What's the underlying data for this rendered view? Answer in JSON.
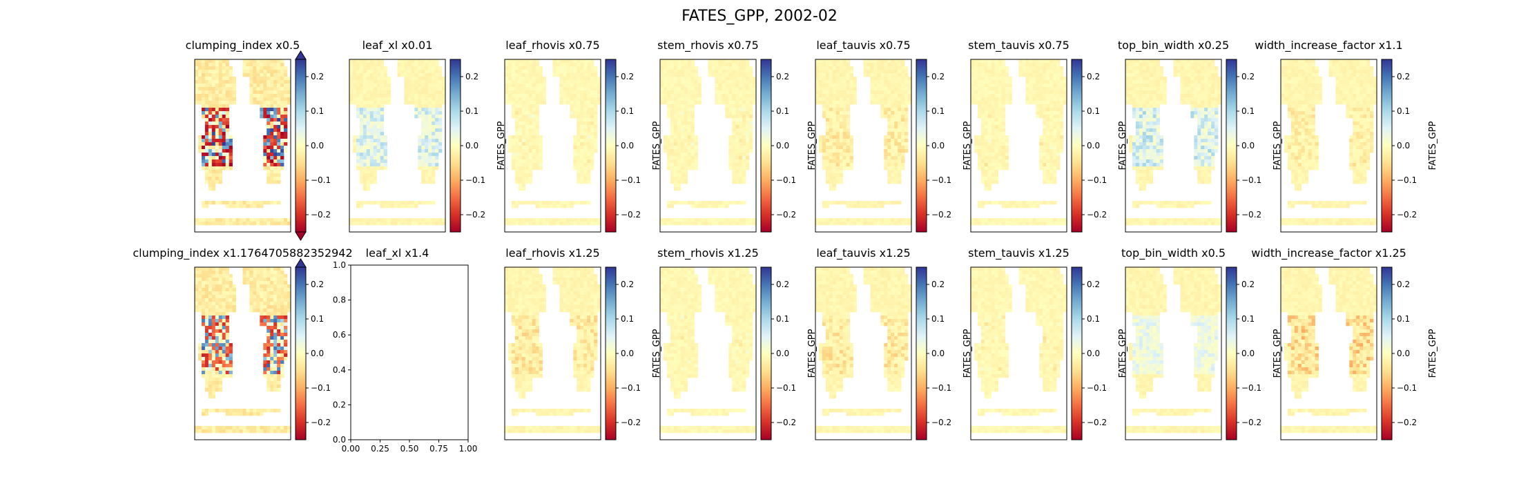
{
  "figure": {
    "title": "FATES_GPP, 2002-02"
  },
  "colorbar": {
    "label": "FATES_GPP",
    "ticks": [
      0.2,
      0.1,
      0.0,
      -0.1,
      -0.2
    ],
    "tick_labels": [
      "0.2",
      "0.1",
      "0.0",
      "−0.1",
      "−0.2"
    ],
    "range": [
      -0.25,
      0.25
    ],
    "colormap_stops": [
      "#a50026",
      "#d73027",
      "#f46d43",
      "#fdae61",
      "#fee090",
      "#ffffbf",
      "#e0f3f8",
      "#abd9e9",
      "#74add1",
      "#4575b4",
      "#313695"
    ]
  },
  "chart_data": [
    {
      "type": "heatmap",
      "title": "clumping_index x0.5",
      "colorbar_extend": "both",
      "pattern": "strong",
      "intensity": 1.0,
      "colorbar_label_shown": false
    },
    {
      "type": "heatmap",
      "title": "leaf_xl x0.01",
      "pattern": "blue",
      "intensity": 0.55
    },
    {
      "type": "heatmap",
      "title": "leaf_rhovis x0.75",
      "pattern": "faint",
      "intensity": 0.12
    },
    {
      "type": "heatmap",
      "title": "stem_rhovis x0.75",
      "pattern": "faint",
      "intensity": 0.08
    },
    {
      "type": "heatmap",
      "title": "leaf_tauvis x0.75",
      "pattern": "orange",
      "intensity": 0.18
    },
    {
      "type": "heatmap",
      "title": "stem_tauvis x0.75",
      "pattern": "faint",
      "intensity": 0.06
    },
    {
      "type": "heatmap",
      "title": "top_bin_width x0.25",
      "pattern": "blue",
      "intensity": 0.6
    },
    {
      "type": "heatmap",
      "title": "width_increase_factor x1.1",
      "pattern": "orange",
      "intensity": 0.16
    },
    {
      "type": "heatmap",
      "title": "clumping_index x1.1764705882352942",
      "colorbar_extend": "max",
      "pattern": "mixed",
      "intensity": 0.85,
      "colorbar_label_shown": false
    },
    {
      "type": "empty",
      "title": "leaf_xl x1.4",
      "xlim": [
        0,
        1
      ],
      "ylim": [
        0,
        1
      ],
      "x_ticks": [
        "0.00",
        "0.25",
        "0.50",
        "0.75",
        "1.00"
      ],
      "y_ticks": [
        "0.0",
        "0.2",
        "0.4",
        "0.6",
        "0.8",
        "1.0"
      ]
    },
    {
      "type": "heatmap",
      "title": "leaf_rhovis x1.25",
      "pattern": "orange",
      "intensity": 0.2
    },
    {
      "type": "heatmap",
      "title": "stem_rhovis x1.25",
      "pattern": "faint",
      "intensity": 0.1
    },
    {
      "type": "heatmap",
      "title": "leaf_tauvis x1.25",
      "pattern": "orange",
      "intensity": 0.2
    },
    {
      "type": "heatmap",
      "title": "stem_tauvis x1.25",
      "pattern": "faint",
      "intensity": 0.06
    },
    {
      "type": "heatmap",
      "title": "top_bin_width x0.5",
      "pattern": "blue",
      "intensity": 0.35
    },
    {
      "type": "heatmap",
      "title": "width_increase_factor x1.25",
      "pattern": "orange",
      "intensity": 0.3
    }
  ]
}
